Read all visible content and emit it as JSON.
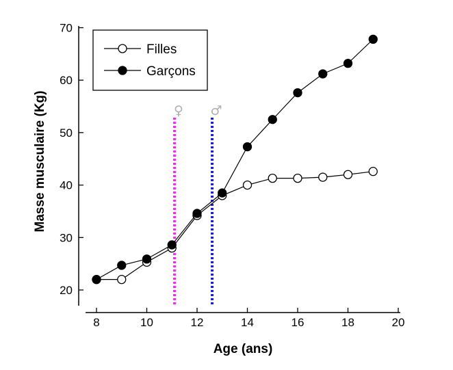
{
  "chart_data": {
    "type": "line",
    "xlabel": "Age (ans)",
    "ylabel": "Masse musculaire (Kg)",
    "xlim": [
      8,
      20
    ],
    "ylim": [
      18,
      70
    ],
    "x_ticks": [
      8,
      10,
      12,
      14,
      16,
      18,
      20
    ],
    "y_ticks": [
      20,
      30,
      40,
      50,
      60,
      70
    ],
    "series": [
      {
        "name": "Filles",
        "marker": "open-circle",
        "x": [
          8,
          9,
          10,
          11,
          12,
          13,
          14,
          15,
          16,
          17,
          18,
          19
        ],
        "values": [
          22.0,
          22.0,
          25.3,
          28.0,
          34.2,
          38.0,
          40.0,
          41.3,
          41.3,
          41.5,
          42.0,
          42.6
        ]
      },
      {
        "name": "Garçons",
        "marker": "filled-circle",
        "x": [
          8,
          9,
          10,
          11,
          12,
          13,
          14,
          15,
          16,
          17,
          18,
          19
        ],
        "values": [
          22.0,
          24.7,
          25.9,
          28.6,
          34.6,
          38.5,
          47.3,
          52.5,
          57.6,
          61.2,
          63.2,
          67.8
        ]
      }
    ],
    "reference_lines": [
      {
        "name": "female-puberty-line",
        "x": 11.1,
        "color": "#ff22ff",
        "symbol": "♀"
      },
      {
        "name": "male-puberty-line",
        "x": 12.6,
        "color": "#1a1adc",
        "symbol": "♂"
      }
    ],
    "legend_position": "top-left",
    "grid": false
  }
}
